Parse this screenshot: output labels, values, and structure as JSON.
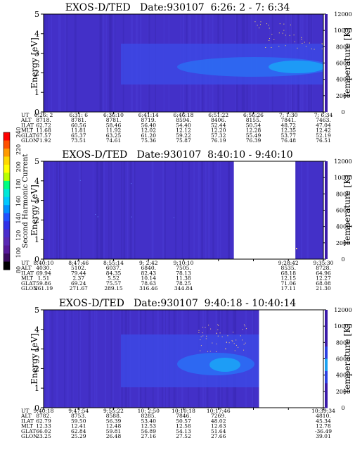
{
  "colorbar": {
    "label": "Second Harmonic Current",
    "ticks": [
      "240",
      "220",
      "200",
      "180",
      "160",
      "140",
      "120",
      "100",
      "80"
    ],
    "colors": [
      "#ff0000",
      "#ff5000",
      "#ff9a00",
      "#ffd800",
      "#ffff00",
      "#b8ff00",
      "#00ff80",
      "#00e8d8",
      "#00c8ff",
      "#0090ff",
      "#2050ff",
      "#3030e8",
      "#4a2ccc",
      "#5a28b4",
      "#56189a",
      "#3a0a60",
      "#000000"
    ]
  },
  "chart_data": [
    {
      "type": "heatmap",
      "title": "EXOS-D/TED   Date:930107  6:26: 2 - 7: 6:34",
      "ylabel": "Energy [eV]",
      "y2label": "Temperature [K]",
      "ylim": [
        0,
        5
      ],
      "yticks": [
        "0",
        "1",
        "2",
        "3",
        "4",
        "5"
      ],
      "y2lim": [
        0,
        12000
      ],
      "y2ticks": [
        "0",
        "2000",
        "4000",
        "6000",
        "8000",
        "10000",
        "12000"
      ],
      "data_gaps": [],
      "orbit_table": {
        "row_labels": [
          "UT",
          "ALT",
          "ILAT",
          "MLT",
          "GLAT",
          "GLON"
        ],
        "columns": [
          [
            "6:26: 2",
            "8718.",
            "62.72",
            "11.68",
            "67.57",
            "71.92"
          ],
          [
            "6:31: 6",
            "8781.",
            "60.56",
            "11.81",
            "65.37",
            "73.51"
          ],
          [
            "6:36:10",
            "8781.",
            "58.46",
            "11.92",
            "63.25",
            "74.61"
          ],
          [
            "6:41:14",
            "8719.",
            "56.40",
            "12.02",
            "61.20",
            "75.36"
          ],
          [
            "6:46:18",
            "8594.",
            "54.40",
            "12.12",
            "59.22",
            "75.87"
          ],
          [
            "6:51:22",
            "8406.",
            "52.44",
            "12.20",
            "57.32",
            "76.19"
          ],
          [
            "6:56:26",
            "8155.",
            "50.54",
            "12.28",
            "55.49",
            "76.39"
          ],
          [
            "7: 1:30",
            "7841.",
            "48.72",
            "12.35",
            "53.77",
            "76.48"
          ],
          [
            "7: 6:34",
            "7463.",
            "47.04",
            "12.42",
            "52.19",
            "76.51"
          ]
        ]
      }
    },
    {
      "type": "heatmap",
      "title": "EXOS-D/TED   Date:930107  8:40:10 - 9:40:10",
      "ylabel": "Energy [eV]",
      "y2label": "Temperature [K]",
      "ylim": [
        0,
        5
      ],
      "yticks": [
        "0",
        "1",
        "2",
        "3",
        "4",
        "5"
      ],
      "y2lim": [
        0,
        12000
      ],
      "y2ticks": [
        "0",
        "2000",
        "4000",
        "6000",
        "8000",
        "10000",
        "12000"
      ],
      "data_gaps": [
        [
          0.68,
          0.9
        ]
      ],
      "orbit_table": {
        "row_labels": [
          "UT",
          "ALT",
          "ILAT",
          "MLT",
          "GLAT",
          "GLON"
        ],
        "columns": [
          [
            "8:40:10",
            "4030.",
            "69.94",
            "1.51",
            "59.86",
            "261.19"
          ],
          [
            "8:47:46",
            "5102.",
            "79.44",
            "2.37",
            "69.24",
            "271.67"
          ],
          [
            "8:55:14",
            "6037.",
            "84.35",
            "5.52",
            "75.57",
            "289.15"
          ],
          [
            "9: 2:42",
            "6840.",
            "82.43",
            "10.14",
            "78.63",
            "316.46"
          ],
          [
            "9:10:10",
            "7505.",
            "78.13",
            "11.38",
            "78.25",
            "344.84"
          ],
          [
            "",
            "",
            "",
            "",
            "",
            ""
          ],
          [
            "",
            "",
            "",
            "",
            "",
            ""
          ],
          [
            "9:28:42",
            "8535.",
            "68.18",
            "12.15",
            "71.06",
            "17.11"
          ],
          [
            "9:35:30",
            "8728.",
            "64.96",
            "12.27",
            "68.08",
            "21.30"
          ]
        ]
      }
    },
    {
      "type": "heatmap",
      "title": "EXOS-D/TED   Date:930107  9:40:18 - 10:40:14",
      "ylabel": "Energy [eV]",
      "y2label": "Temperature [K]",
      "ylim": [
        0,
        5
      ],
      "yticks": [
        "0",
        "1",
        "2",
        "3",
        "4",
        "5"
      ],
      "y2lim": [
        0,
        12000
      ],
      "y2ticks": [
        "0",
        "2000",
        "4000",
        "6000",
        "8000",
        "10000",
        "12000"
      ],
      "data_gaps": [
        [
          0.77,
          1.0
        ]
      ],
      "orbit_table": {
        "row_labels": [
          "UT",
          "ALT",
          "ILAT",
          "MLT",
          "GLAT",
          "GLON"
        ],
        "columns": [
          [
            "9:40:18",
            "8782.",
            "62.79",
            "12.33",
            "66.02",
            "23.25"
          ],
          [
            "9:47:54",
            "8753.",
            "59.50",
            "12.41",
            "62.84",
            "25.29"
          ],
          [
            "9:55:22",
            "8588.",
            "56.39",
            "12.48",
            "59.81",
            "26.48"
          ],
          [
            "10: 2:50",
            "8285.",
            "53.40",
            "12.53",
            "56.89",
            "27.16"
          ],
          [
            "10:10:18",
            "7846.",
            "50.57",
            "12.58",
            "54.13",
            "27.52"
          ],
          [
            "10:17:46",
            "7269.",
            "48.02",
            "12.63",
            "51.64",
            "27.66"
          ],
          [
            "",
            "",
            "",
            "",
            "",
            ""
          ],
          [
            "",
            "",
            "",
            "",
            "",
            ""
          ],
          [
            "10:39:34",
            "4810.",
            "45.34",
            "12.78",
            "-36.49",
            "39.01"
          ]
        ]
      }
    }
  ]
}
